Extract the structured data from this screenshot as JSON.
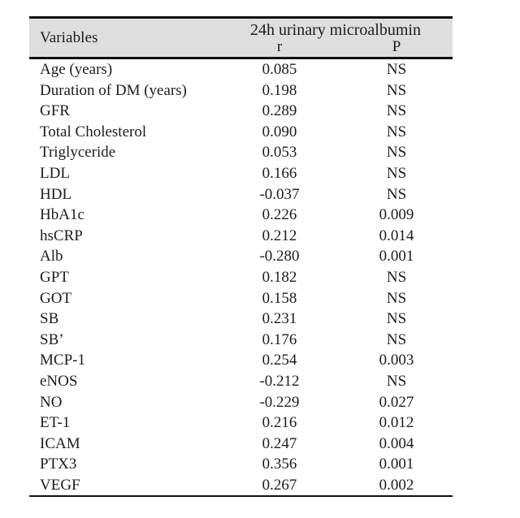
{
  "table": {
    "header": {
      "variables_label": "Variables",
      "group_label": "24h urinary microalbumin",
      "col_r_label": "r",
      "col_p_label": "P"
    },
    "rows": [
      {
        "variable": "Age (years)",
        "r": "0.085",
        "p": "NS"
      },
      {
        "variable": "Duration of DM (years)",
        "r": "0.198",
        "p": "NS"
      },
      {
        "variable": "GFR",
        "r": "0.289",
        "p": "NS"
      },
      {
        "variable": "Total Cholesterol",
        "r": "0.090",
        "p": "NS"
      },
      {
        "variable": "Triglyceride",
        "r": "0.053",
        "p": "NS"
      },
      {
        "variable": "LDL",
        "r": "0.166",
        "p": "NS"
      },
      {
        "variable": "HDL",
        "r": "-0.037",
        "p": "NS"
      },
      {
        "variable": "HbA1c",
        "r": "0.226",
        "p": "0.009"
      },
      {
        "variable": "hsCRP",
        "r": "0.212",
        "p": "0.014"
      },
      {
        "variable": "Alb",
        "r": "-0.280",
        "p": "0.001"
      },
      {
        "variable": "GPT",
        "r": "0.182",
        "p": "NS"
      },
      {
        "variable": "GOT",
        "r": "0.158",
        "p": "NS"
      },
      {
        "variable": "SB",
        "r": "0.231",
        "p": "NS"
      },
      {
        "variable": "SB’",
        "r": "0.176",
        "p": "NS"
      },
      {
        "variable": "MCP-1",
        "r": "0.254",
        "p": "0.003"
      },
      {
        "variable": "eNOS",
        "r": "-0.212",
        "p": "NS"
      },
      {
        "variable": "NO",
        "r": "-0.229",
        "p": "0.027"
      },
      {
        "variable": "ET-1",
        "r": "0.216",
        "p": "0.012"
      },
      {
        "variable": "ICAM",
        "r": "0.247",
        "p": "0.004"
      },
      {
        "variable": "PTX3",
        "r": "0.356",
        "p": "0.001"
      },
      {
        "variable": "VEGF",
        "r": "0.267",
        "p": "0.002"
      }
    ]
  },
  "colors": {
    "header_bg": "#dedede",
    "rule": "#111111",
    "text": "#1c1c1c",
    "page_bg": "#ffffff"
  }
}
